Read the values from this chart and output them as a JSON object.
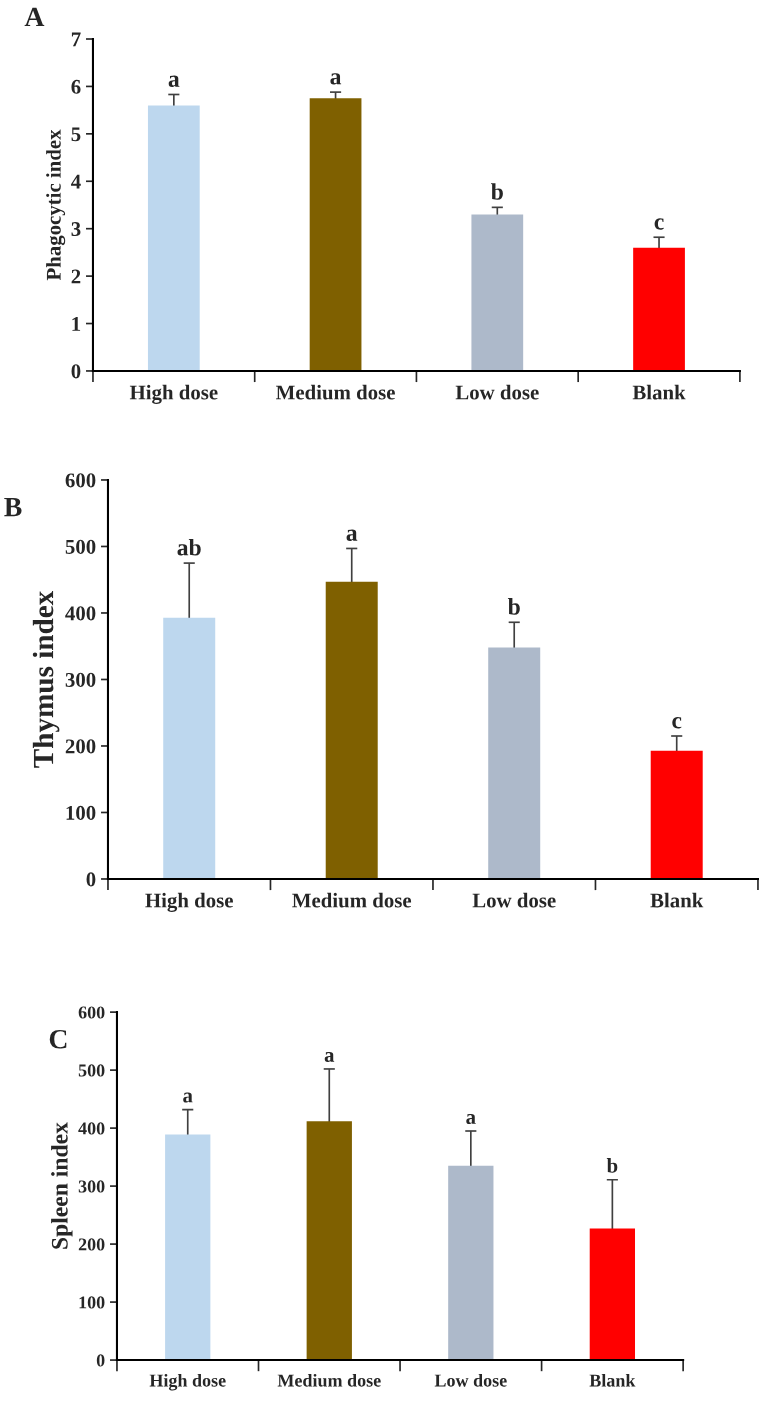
{
  "chart_data": [
    {
      "type": "bar",
      "title": "A",
      "ylabel": "Phagocytic index",
      "categories": [
        "High dose",
        "Medium dose",
        "Low dose",
        "Blank"
      ],
      "colors": [
        "#bdd7ee",
        "#7f6000",
        "#adb9ca",
        "#ff0000"
      ],
      "values": [
        5.6,
        5.75,
        3.3,
        2.6
      ],
      "errors": [
        0.23,
        0.13,
        0.15,
        0.22
      ],
      "ylim": [
        0,
        7
      ],
      "yticks": [
        0,
        1,
        2,
        3,
        4,
        5,
        6,
        7
      ],
      "grid": false,
      "annotations": [
        "a",
        "a",
        "b",
        "c"
      ]
    },
    {
      "type": "bar",
      "title": "B",
      "ylabel": "Thymus index",
      "categories": [
        "High dose",
        "Medium dose",
        "Low dose",
        "Blank"
      ],
      "colors": [
        "#bdd7ee",
        "#7f6000",
        "#adb9ca",
        "#ff0000"
      ],
      "values": [
        393,
        447,
        348,
        193
      ],
      "errors": [
        82,
        50,
        38,
        22
      ],
      "ylim": [
        0,
        600
      ],
      "yticks": [
        0,
        100,
        200,
        300,
        400,
        500,
        600
      ],
      "grid": false,
      "annotations": [
        "ab",
        "a",
        "b",
        "c"
      ]
    },
    {
      "type": "bar",
      "title": "C",
      "ylabel": "Spleen index",
      "categories": [
        "High dose",
        "Medium dose",
        "Low dose",
        "Blank"
      ],
      "colors": [
        "#bdd7ee",
        "#7f6000",
        "#adb9ca",
        "#ff0000"
      ],
      "values": [
        389,
        412,
        335,
        227
      ],
      "errors": [
        43,
        90,
        60,
        84
      ],
      "ylim": [
        0,
        600
      ],
      "yticks": [
        0,
        100,
        200,
        300,
        400,
        500,
        600
      ],
      "grid": false,
      "annotations": [
        "a",
        "a",
        "a",
        "b"
      ]
    }
  ]
}
